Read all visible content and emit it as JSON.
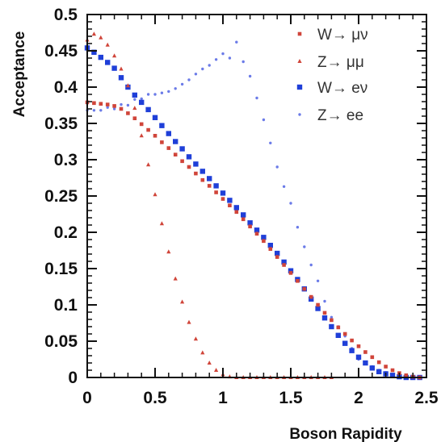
{
  "chart_data": {
    "type": "scatter",
    "xlabel": "Boson Rapidity",
    "ylabel": "Acceptance",
    "xlim": [
      0,
      2.5
    ],
    "ylim": [
      0,
      0.5
    ],
    "xticks": [
      "0",
      "0.5",
      "1",
      "1.5",
      "2",
      "2.5"
    ],
    "yticks": [
      "0",
      "0.05",
      "0.1",
      "0.15",
      "0.2",
      "0.25",
      "0.3",
      "0.35",
      "0.4",
      "0.45",
      "0.5"
    ],
    "legend_position": "top-right",
    "grid": false,
    "series": [
      {
        "name": "W→ μν",
        "color": "#d0453a",
        "marker": "small-square",
        "x": [
          0.0,
          0.05,
          0.1,
          0.15,
          0.2,
          0.25,
          0.3,
          0.35,
          0.4,
          0.45,
          0.5,
          0.55,
          0.6,
          0.65,
          0.7,
          0.75,
          0.8,
          0.85,
          0.9,
          0.95,
          1.0,
          1.05,
          1.1,
          1.15,
          1.2,
          1.25,
          1.3,
          1.35,
          1.4,
          1.45,
          1.5,
          1.55,
          1.6,
          1.65,
          1.7,
          1.75,
          1.8,
          1.85,
          1.9,
          1.95,
          2.0,
          2.05,
          2.1,
          2.15,
          2.2,
          2.25,
          2.3,
          2.35,
          2.4,
          2.45
        ],
        "y": [
          0.379,
          0.378,
          0.377,
          0.376,
          0.374,
          0.37,
          0.364,
          0.357,
          0.349,
          0.341,
          0.333,
          0.324,
          0.316,
          0.307,
          0.298,
          0.29,
          0.281,
          0.272,
          0.264,
          0.255,
          0.246,
          0.237,
          0.228,
          0.218,
          0.208,
          0.198,
          0.188,
          0.177,
          0.166,
          0.155,
          0.144,
          0.133,
          0.122,
          0.111,
          0.1,
          0.089,
          0.079,
          0.069,
          0.06,
          0.051,
          0.043,
          0.035,
          0.028,
          0.021,
          0.015,
          0.01,
          0.006,
          0.003,
          0.001,
          0.0
        ]
      },
      {
        "name": "Z→ μμ",
        "color": "#d0453a",
        "marker": "small-triangle",
        "x": [
          0.0,
          0.05,
          0.1,
          0.15,
          0.2,
          0.25,
          0.3,
          0.35,
          0.4,
          0.45,
          0.5,
          0.55,
          0.6,
          0.65,
          0.7,
          0.75,
          0.8,
          0.85,
          0.9,
          0.95,
          1.0,
          1.05,
          1.1,
          1.15,
          1.2,
          1.25,
          1.3,
          1.35,
          1.4,
          1.45,
          1.5,
          1.55,
          1.6,
          1.65,
          1.7,
          1.75,
          1.8
        ],
        "y": [
          0.465,
          0.473,
          0.468,
          0.458,
          0.443,
          0.425,
          0.402,
          0.371,
          0.333,
          0.293,
          0.252,
          0.212,
          0.173,
          0.136,
          0.104,
          0.076,
          0.053,
          0.034,
          0.02,
          0.01,
          0.004,
          0.001,
          0.0,
          0.0,
          0.0,
          0.0,
          0.0,
          0.0,
          0.0,
          0.0,
          0.0,
          0.0,
          0.0,
          0.0,
          0.0,
          0.0,
          0.0
        ]
      },
      {
        "name": "W→ eν",
        "color": "#1f3fd8",
        "marker": "square",
        "x": [
          0.0,
          0.05,
          0.1,
          0.15,
          0.2,
          0.25,
          0.3,
          0.35,
          0.4,
          0.45,
          0.5,
          0.55,
          0.6,
          0.65,
          0.7,
          0.75,
          0.8,
          0.85,
          0.9,
          0.95,
          1.0,
          1.05,
          1.1,
          1.15,
          1.2,
          1.25,
          1.3,
          1.35,
          1.4,
          1.45,
          1.5,
          1.55,
          1.6,
          1.65,
          1.7,
          1.75,
          1.8,
          1.85,
          1.9,
          1.95,
          2.0,
          2.05,
          2.1,
          2.15,
          2.2,
          2.25,
          2.3,
          2.35,
          2.4,
          2.45
        ],
        "y": [
          0.454,
          0.448,
          0.441,
          0.434,
          0.426,
          0.413,
          0.4,
          0.389,
          0.379,
          0.369,
          0.358,
          0.347,
          0.336,
          0.325,
          0.315,
          0.304,
          0.294,
          0.284,
          0.274,
          0.264,
          0.254,
          0.244,
          0.234,
          0.224,
          0.213,
          0.203,
          0.193,
          0.182,
          0.171,
          0.159,
          0.147,
          0.135,
          0.122,
          0.108,
          0.095,
          0.082,
          0.07,
          0.058,
          0.047,
          0.037,
          0.028,
          0.02,
          0.013,
          0.008,
          0.005,
          0.003,
          0.001,
          0.0,
          0.0,
          0.0
        ]
      },
      {
        "name": "Z→ ee",
        "color": "#6b7be8",
        "marker": "dot",
        "x": [
          0.0,
          0.05,
          0.1,
          0.15,
          0.2,
          0.25,
          0.3,
          0.35,
          0.4,
          0.45,
          0.5,
          0.55,
          0.6,
          0.65,
          0.7,
          0.75,
          0.8,
          0.85,
          0.9,
          0.95,
          1.0,
          1.05,
          1.1,
          1.15,
          1.2,
          1.25,
          1.3,
          1.35,
          1.4,
          1.45,
          1.5,
          1.55,
          1.6,
          1.65,
          1.7,
          1.75,
          1.8,
          1.85,
          1.9,
          1.95,
          2.0,
          2.05,
          2.1,
          2.15,
          2.2,
          2.25,
          2.3,
          2.35,
          2.4
        ],
        "y": [
          0.368,
          0.368,
          0.368,
          0.372,
          0.37,
          0.376,
          0.375,
          0.383,
          0.384,
          0.39,
          0.39,
          0.392,
          0.394,
          0.398,
          0.404,
          0.41,
          0.418,
          0.425,
          0.43,
          0.438,
          0.446,
          0.44,
          0.462,
          0.435,
          0.415,
          0.385,
          0.355,
          0.323,
          0.29,
          0.263,
          0.24,
          0.207,
          0.18,
          0.155,
          0.133,
          0.105,
          0.083,
          0.07,
          0.057,
          0.04,
          0.025,
          0.02,
          0.015,
          0.01,
          0.007,
          0.004,
          0.002,
          0.001,
          0.0
        ]
      }
    ]
  }
}
